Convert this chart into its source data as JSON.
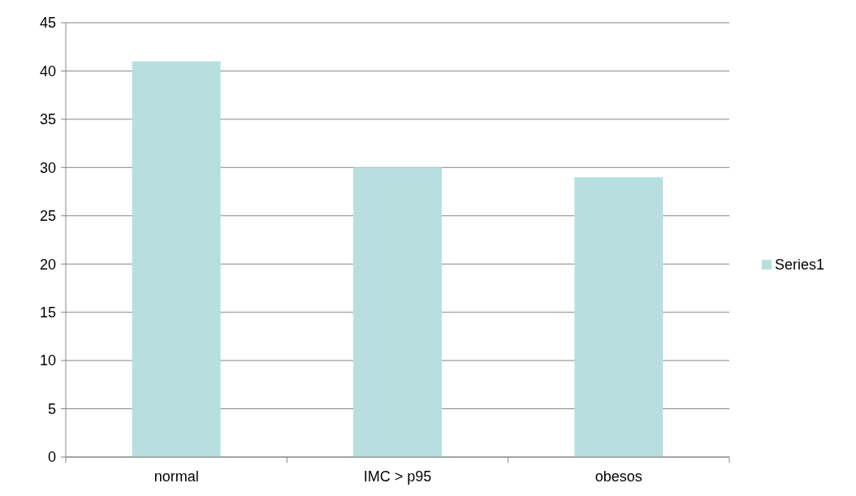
{
  "chart_data": {
    "type": "bar",
    "categories": [
      "normal",
      "IMC > p95",
      "obesos"
    ],
    "series": [
      {
        "name": "Series1",
        "color": "#b7dfe0",
        "values": [
          41,
          30,
          29
        ]
      }
    ],
    "ylim": [
      0,
      45
    ],
    "yticks": [
      0,
      5,
      10,
      15,
      20,
      25,
      30,
      35,
      40,
      45
    ],
    "grid": "y",
    "legend": "right"
  }
}
